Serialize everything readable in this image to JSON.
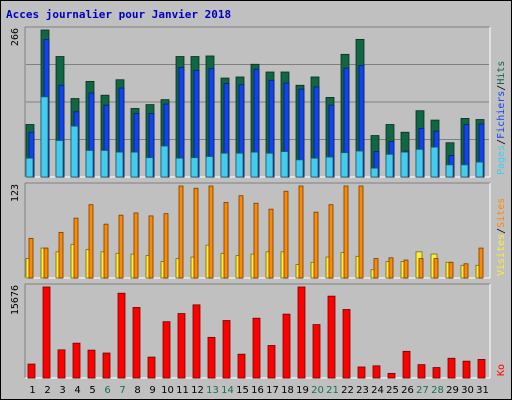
{
  "title": "Acces journalier pour Janvier 2018",
  "colors": {
    "pages": "#44ccee",
    "fichiers": "#1144ee",
    "hits": "#116644",
    "visites": "#ffee33",
    "sites": "#ff8800",
    "ko": "#ff0000",
    "weekend": "#1a7050",
    "weekday": "#000000",
    "background": "#c0c0c0"
  },
  "chart_data": [
    {
      "type": "bar",
      "panel": "top",
      "tick_label": "266",
      "ylim": [
        0,
        266
      ],
      "legend": [
        "Pages",
        "Fichiers",
        "Hits"
      ],
      "categories": [
        "1",
        "2",
        "3",
        "4",
        "5",
        "6",
        "7",
        "8",
        "9",
        "10",
        "11",
        "12",
        "13",
        "14",
        "15",
        "16",
        "17",
        "18",
        "19",
        "20",
        "21",
        "22",
        "23",
        "24",
        "25",
        "26",
        "27",
        "28",
        "29",
        "30",
        "31"
      ],
      "series": [
        {
          "name": "Hits",
          "values": [
            95,
            266,
            218,
            142,
            173,
            148,
            176,
            124,
            131,
            140,
            218,
            218,
            219,
            179,
            181,
            204,
            190,
            190,
            166,
            181,
            144,
            222,
            249,
            75,
            95,
            81,
            120,
            103,
            62,
            106,
            104
          ]
        },
        {
          "name": "Fichiers",
          "values": [
            81,
            249,
            166,
            118,
            152,
            130,
            161,
            115,
            115,
            132,
            198,
            193,
            196,
            169,
            167,
            195,
            175,
            170,
            159,
            163,
            130,
            197,
            202,
            46,
            64,
            47,
            88,
            83,
            39,
            95,
            96
          ]
        },
        {
          "name": "Pages",
          "values": [
            34,
            145,
            66,
            92,
            48,
            48,
            45,
            45,
            35,
            56,
            34,
            35,
            37,
            43,
            43,
            45,
            43,
            46,
            31,
            34,
            36,
            44,
            47,
            16,
            41,
            45,
            50,
            54,
            22,
            22,
            27
          ]
        }
      ]
    },
    {
      "type": "bar",
      "panel": "middle",
      "tick_label": "123",
      "ylim": [
        0,
        123
      ],
      "legend": [
        "Visites",
        "Sites"
      ],
      "categories": [
        "1",
        "2",
        "3",
        "4",
        "5",
        "6",
        "7",
        "8",
        "9",
        "10",
        "11",
        "12",
        "13",
        "14",
        "15",
        "16",
        "17",
        "18",
        "19",
        "20",
        "21",
        "22",
        "23",
        "24",
        "25",
        "26",
        "27",
        "28",
        "29",
        "30",
        "31"
      ],
      "series": [
        {
          "name": "Visites",
          "values": [
            26,
            40,
            35,
            45,
            38,
            35,
            33,
            32,
            30,
            22,
            26,
            28,
            44,
            33,
            30,
            32,
            35,
            35,
            18,
            21,
            28,
            34,
            29,
            11,
            22,
            22,
            35,
            32,
            21,
            17,
            17
          ]
        },
        {
          "name": "Sites",
          "values": [
            53,
            40,
            61,
            80,
            98,
            72,
            84,
            87,
            83,
            86,
            123,
            120,
            123,
            101,
            110,
            100,
            92,
            116,
            123,
            88,
            98,
            123,
            123,
            26,
            27,
            24,
            26,
            26,
            21,
            19,
            40
          ]
        }
      ]
    },
    {
      "type": "bar",
      "panel": "bottom",
      "tick_label": "15676",
      "ylim": [
        0,
        15676
      ],
      "legend": [
        "Ko"
      ],
      "categories": [
        "1",
        "2",
        "3",
        "4",
        "5",
        "6",
        "7",
        "8",
        "9",
        "10",
        "11",
        "12",
        "13",
        "14",
        "15",
        "16",
        "17",
        "18",
        "19",
        "20",
        "21",
        "22",
        "23",
        "24",
        "25",
        "26",
        "27",
        "28",
        "29",
        "30",
        "31"
      ],
      "series": [
        {
          "name": "Ko",
          "values": [
            2400,
            15676,
            4850,
            6000,
            4800,
            4300,
            14600,
            12150,
            3600,
            9700,
            11100,
            12600,
            7000,
            9900,
            4100,
            10300,
            5600,
            11000,
            15676,
            9200,
            14100,
            11800,
            1900,
            2100,
            800,
            4600,
            2300,
            1800,
            3400,
            2900,
            3200
          ]
        }
      ]
    }
  ],
  "days": [
    {
      "label": "1",
      "weekend": false
    },
    {
      "label": "2",
      "weekend": false
    },
    {
      "label": "3",
      "weekend": false
    },
    {
      "label": "4",
      "weekend": false
    },
    {
      "label": "5",
      "weekend": false
    },
    {
      "label": "6",
      "weekend": true
    },
    {
      "label": "7",
      "weekend": true
    },
    {
      "label": "8",
      "weekend": false
    },
    {
      "label": "9",
      "weekend": false
    },
    {
      "label": "10",
      "weekend": false
    },
    {
      "label": "11",
      "weekend": false
    },
    {
      "label": "12",
      "weekend": false
    },
    {
      "label": "13",
      "weekend": true
    },
    {
      "label": "14",
      "weekend": true
    },
    {
      "label": "15",
      "weekend": false
    },
    {
      "label": "16",
      "weekend": false
    },
    {
      "label": "17",
      "weekend": false
    },
    {
      "label": "18",
      "weekend": false
    },
    {
      "label": "19",
      "weekend": false
    },
    {
      "label": "20",
      "weekend": true
    },
    {
      "label": "21",
      "weekend": true
    },
    {
      "label": "22",
      "weekend": false
    },
    {
      "label": "23",
      "weekend": false
    },
    {
      "label": "24",
      "weekend": false
    },
    {
      "label": "25",
      "weekend": false
    },
    {
      "label": "26",
      "weekend": false
    },
    {
      "label": "27",
      "weekend": true
    },
    {
      "label": "28",
      "weekend": true
    },
    {
      "label": "29",
      "weekend": false
    },
    {
      "label": "30",
      "weekend": false
    },
    {
      "label": "31",
      "weekend": false
    }
  ]
}
